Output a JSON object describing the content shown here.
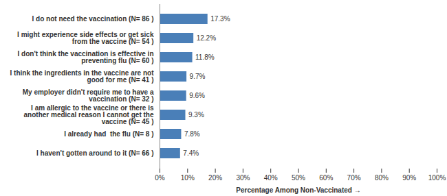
{
  "chart_data": {
    "type": "bar",
    "orientation": "horizontal",
    "categories": [
      "I do not need the vaccination (N= 86 )",
      "I might experience side effects or get sick from the vaccine (N= 54 )",
      "I don't think the vaccination is effective in preventing flu (N= 60 )",
      "I think the ingredients in the vaccine are not good for me (N= 41 )",
      "My employer didn't require me to have a vaccination (N= 32 )",
      "I am allergic to the vaccine or there is another medical reason I cannot get the vaccine (N= 45 )",
      "I already had  the flu (N= 8 )",
      "I haven't gotten around to it (N= 66 )"
    ],
    "values": [
      17.3,
      12.2,
      11.8,
      9.7,
      9.6,
      9.3,
      7.8,
      7.4
    ],
    "value_labels": [
      "17.3%",
      "12.2%",
      "11.8%",
      "9.7%",
      "9.6%",
      "9.3%",
      "7.8%",
      "7.4%"
    ],
    "data_labels": true,
    "color": "#4a7fb8",
    "x_label": "Percentage Among Non-Vaccinated",
    "xlim": [
      0,
      100
    ],
    "xticks": [
      {
        "value": 0,
        "label": "0%"
      },
      {
        "value": 10,
        "label": "10%"
      },
      {
        "value": 20,
        "label": "20%"
      },
      {
        "value": 30,
        "label": "30%"
      },
      {
        "value": 40,
        "label": "40%"
      },
      {
        "value": 50,
        "label": "50%"
      },
      {
        "value": 60,
        "label": "60%"
      },
      {
        "value": 70,
        "label": "70%"
      },
      {
        "value": 80,
        "label": "80%"
      },
      {
        "value": 90,
        "label": "90%"
      },
      {
        "value": 100,
        "label": "100%"
      }
    ],
    "grid": false
  }
}
